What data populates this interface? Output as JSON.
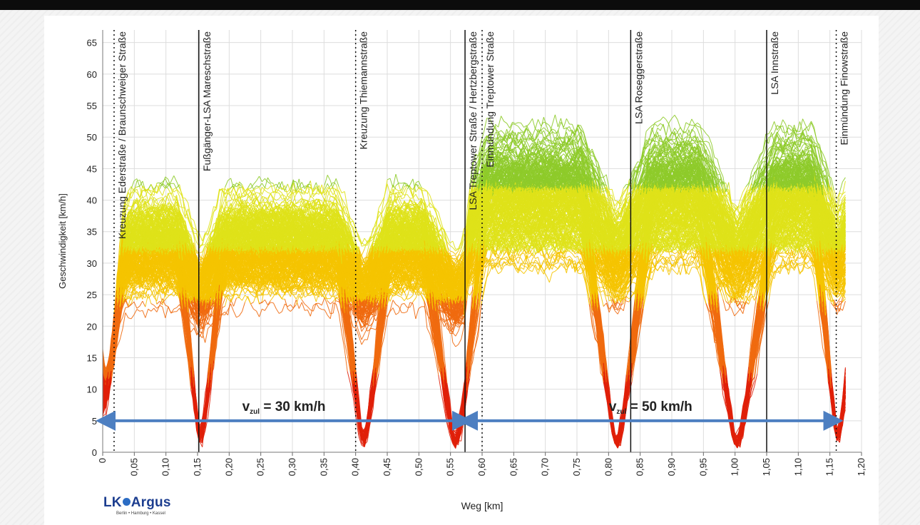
{
  "chart_data": {
    "type": "line",
    "title": "",
    "xlabel": "Weg [km]",
    "ylabel": "Geschwindigkeit [km/h]",
    "xlim": [
      0,
      1.2
    ],
    "ylim": [
      0,
      67
    ],
    "grid": true,
    "x_ticks": [
      "0",
      "0,05",
      "0,10",
      "0,15",
      "0,20",
      "0,25",
      "0,30",
      "0,35",
      "0,40",
      "0,45",
      "0,50",
      "0,55",
      "0,60",
      "0,65",
      "0,70",
      "0,75",
      "0,80",
      "0,85",
      "0,90",
      "0,95",
      "1,00",
      "1,05",
      "1,10",
      "1,15",
      "1,20"
    ],
    "y_ticks": [
      "0",
      "5",
      "10",
      "15",
      "20",
      "25",
      "30",
      "35",
      "40",
      "45",
      "50",
      "55",
      "60",
      "65"
    ],
    "series_description_color_scale": [
      "#e0200a",
      "#f06a10",
      "#f5c400",
      "#dfe21a",
      "#8ecb2a",
      "#2ea84a",
      "#3a8fd0"
    ],
    "trip_count": 260,
    "markers": [
      {
        "x": 0.018,
        "label": "Kreuzung Ederstraße / Braunschweiger Straße",
        "style": "dotted"
      },
      {
        "x": 0.152,
        "label": "Fußgänger-LSA Mareschstraße",
        "style": "solid"
      },
      {
        "x": 0.4,
        "label": "Kreuzung Thiemannstraße",
        "style": "dotted"
      },
      {
        "x": 0.573,
        "label": "LSA Treptower Straße / Hertzbergstraße",
        "style": "solid"
      },
      {
        "x": 0.6,
        "label": "Einmündung Treptower Straße",
        "style": "dotted"
      },
      {
        "x": 0.835,
        "label": "LSA Roseggerstraße",
        "style": "solid"
      },
      {
        "x": 1.05,
        "label": "LSA Innstraße",
        "style": "solid"
      },
      {
        "x": 1.16,
        "label": "Einmündung Finowstraße",
        "style": "dotted"
      }
    ],
    "speed_limits": [
      {
        "x_from": 0.0,
        "x_to": 0.573,
        "y": 5,
        "label_main": "v",
        "label_sub": "zul",
        "label_rest": " = 30 km/h"
      },
      {
        "x_from": 0.573,
        "x_to": 1.16,
        "y": 5,
        "label_main": "v",
        "label_sub": "zul",
        "label_rest": " = 50 km/h"
      }
    ]
  },
  "logo": {
    "name": "LK",
    "name2": "Argus",
    "subtitle": "Berlin • Hamburg • Kassel"
  }
}
